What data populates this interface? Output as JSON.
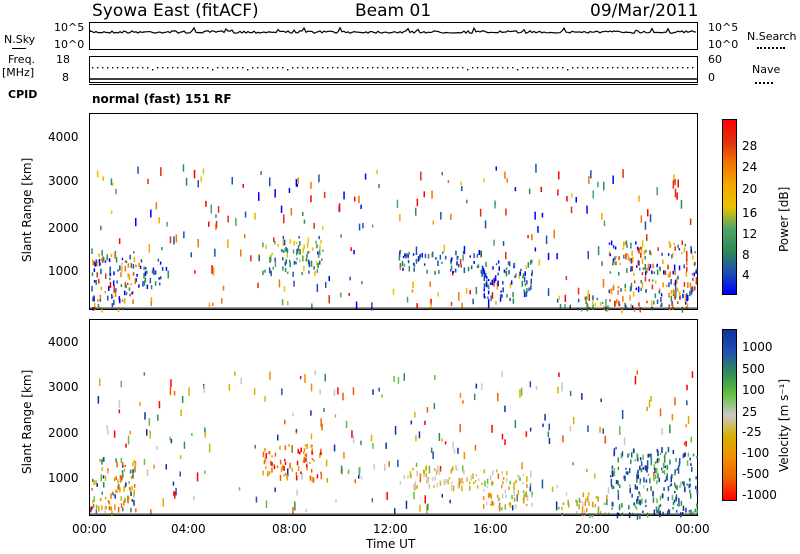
{
  "header": {
    "station": "Syowa East (fitACF)",
    "beam": "Beam 01",
    "date": "09/Mar/2011"
  },
  "noise_panel": {
    "left_label": "N.Sky",
    "right_label": "N.Search",
    "left_ticks": [
      "10^5",
      "10^0"
    ],
    "right_ticks": [
      "10^5",
      "10^0"
    ]
  },
  "freq_panel": {
    "left_label_top": "Freq.",
    "left_label_unit": "[MHz]",
    "left_ticks": [
      "18",
      "8"
    ],
    "right_label": "Nave",
    "right_ticks": [
      "60",
      "0"
    ]
  },
  "cpid_panel": {
    "label": "CPID",
    "text": "normal (fast) 151 RF"
  },
  "x_axis": {
    "ticks": [
      "00:00",
      "04:00",
      "08:00",
      "12:00",
      "16:00",
      "20:00",
      "00:00"
    ],
    "label": "Time UT"
  },
  "power_panel": {
    "ylabel": "Slant Range [km]",
    "yticks": [
      "1000",
      "2000",
      "3000",
      "4000"
    ],
    "colorbar_label": "Power [dB]",
    "colorbar_ticks": [
      "4",
      "8",
      "12",
      "16",
      "20",
      "24",
      "28"
    ]
  },
  "velocity_panel": {
    "ylabel": "Slant Range [km]",
    "yticks": [
      "1000",
      "2000",
      "3000",
      "4000"
    ],
    "colorbar_label": "Velocity [m s⁻¹]",
    "colorbar_ticks": [
      "1000",
      "500",
      "100",
      "25",
      "-25",
      "-100",
      "-500",
      "-1000"
    ]
  },
  "colors": {
    "power_scale": [
      "#0000ff",
      "#1f4fb0",
      "#2e8b57",
      "#4fa36a",
      "#e8c400",
      "#f5a800",
      "#f07800",
      "#e03010",
      "#ff0000"
    ],
    "velocity_scale": [
      "#1030a0",
      "#2050b0",
      "#2e8b57",
      "#60c040",
      "#c8c8c8",
      "#d8b000",
      "#f09000",
      "#f06000",
      "#ff0000"
    ]
  },
  "chart_data": [
    {
      "type": "heatmap",
      "title": "Power",
      "xlabel": "Time UT",
      "ylabel": "Slant Range [km]",
      "xlim": [
        0,
        24
      ],
      "ylim": [
        180,
        4500
      ],
      "colorbar": {
        "label": "Power [dB]",
        "range": [
          0,
          30
        ]
      },
      "regions": [
        {
          "t_start": 0.0,
          "t_end": 1.8,
          "range_start": 200,
          "range_end": 1500,
          "level": "high"
        },
        {
          "t_start": 1.8,
          "t_end": 3.0,
          "range_start": 700,
          "range_end": 1300,
          "level": "low"
        },
        {
          "t_start": 6.8,
          "t_end": 9.2,
          "range_start": 1000,
          "range_end": 1800,
          "level": "medium"
        },
        {
          "t_start": 12.2,
          "t_end": 15.5,
          "range_start": 1000,
          "range_end": 1500,
          "level": "low"
        },
        {
          "t_start": 15.5,
          "t_end": 17.5,
          "range_start": 400,
          "range_end": 1300,
          "level": "low"
        },
        {
          "t_start": 18.5,
          "t_end": 20.5,
          "range_start": 200,
          "range_end": 500,
          "level": "medium"
        },
        {
          "t_start": 20.5,
          "t_end": 24.0,
          "range_start": 200,
          "range_end": 1700,
          "level": "high"
        }
      ]
    },
    {
      "type": "heatmap",
      "title": "Velocity",
      "xlabel": "Time UT",
      "ylabel": "Slant Range [km]",
      "xlim": [
        0,
        24
      ],
      "ylim": [
        180,
        4500
      ],
      "colorbar": {
        "label": "Velocity [m s⁻¹]",
        "range": [
          -1000,
          1000
        ]
      },
      "regions": [
        {
          "t_start": 0.0,
          "t_end": 1.8,
          "range_start": 200,
          "range_end": 1500,
          "level": "mixed"
        },
        {
          "t_start": 6.8,
          "t_end": 9.2,
          "range_start": 1000,
          "range_end": 1800,
          "level": "negative"
        },
        {
          "t_start": 12.2,
          "t_end": 15.5,
          "range_start": 800,
          "range_end": 1300,
          "level": "near-zero"
        },
        {
          "t_start": 15.5,
          "t_end": 17.5,
          "range_start": 400,
          "range_end": 1200,
          "level": "negative-low"
        },
        {
          "t_start": 18.5,
          "t_end": 20.5,
          "range_start": 200,
          "range_end": 700,
          "level": "negative-low"
        },
        {
          "t_start": 20.5,
          "t_end": 24.0,
          "range_start": 200,
          "range_end": 1700,
          "level": "positive"
        }
      ]
    }
  ]
}
